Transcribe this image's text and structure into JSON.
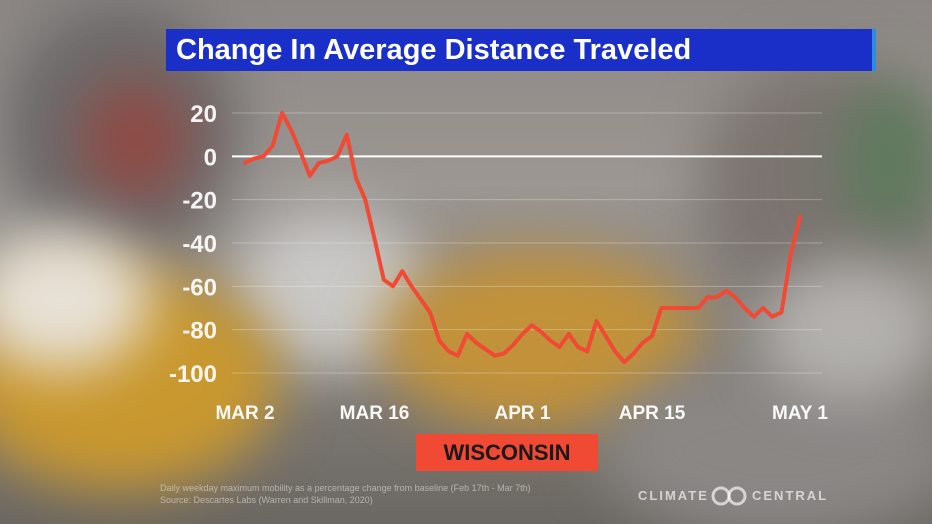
{
  "title": "Change In Average Distance Traveled",
  "region_label": "WISCONSIN",
  "footnote": {
    "line1": "Daily weekday maximum mobility as a percentage change from baseline (Feb 17th - Mar 7th)",
    "line2": "Source: Descartes Labs (Warren and Skillman, 2020)"
  },
  "brand": {
    "left": "CLIMATE",
    "right": "CENTRAL",
    "icon": "climate-central-logo-icon"
  },
  "colors": {
    "title_bg": "#1a2fc8",
    "line": "#f04a35",
    "region_bg": "#f04a35",
    "zero_line": "#ffffff"
  },
  "chart_data": {
    "type": "line",
    "title": "Change In Average Distance Traveled",
    "xlabel": "",
    "ylabel": "",
    "ylim": [
      -100,
      20
    ],
    "xlim": [
      "2020-03-02",
      "2020-05-01"
    ],
    "yticks": [
      20,
      0,
      -20,
      -40,
      -60,
      -80,
      -100
    ],
    "xtick_labels": [
      "MAR 2",
      "MAR 16",
      "APR 1",
      "APR 15",
      "MAY 1"
    ],
    "xtick_dates": [
      "2020-03-02",
      "2020-03-16",
      "2020-04-01",
      "2020-04-15",
      "2020-05-01"
    ],
    "grid": true,
    "legend": "none",
    "series": [
      {
        "x": [
          "2020-03-02",
          "2020-03-03",
          "2020-03-04",
          "2020-03-05",
          "2020-03-06",
          "2020-03-07",
          "2020-03-08",
          "2020-03-09",
          "2020-03-10",
          "2020-03-11",
          "2020-03-12",
          "2020-03-13",
          "2020-03-14",
          "2020-03-15",
          "2020-03-16",
          "2020-03-17",
          "2020-03-18",
          "2020-03-19",
          "2020-03-20",
          "2020-03-21",
          "2020-03-22",
          "2020-03-23",
          "2020-03-24",
          "2020-03-25",
          "2020-03-26",
          "2020-03-27",
          "2020-03-28",
          "2020-03-29",
          "2020-03-30",
          "2020-03-31",
          "2020-04-01",
          "2020-04-02",
          "2020-04-03",
          "2020-04-04",
          "2020-04-05",
          "2020-04-06",
          "2020-04-07",
          "2020-04-08",
          "2020-04-09",
          "2020-04-10",
          "2020-04-11",
          "2020-04-12",
          "2020-04-13",
          "2020-04-14",
          "2020-04-15",
          "2020-04-16",
          "2020-04-17",
          "2020-04-18",
          "2020-04-19",
          "2020-04-20",
          "2020-04-21",
          "2020-04-22",
          "2020-04-23",
          "2020-04-24",
          "2020-04-25",
          "2020-04-26",
          "2020-04-27",
          "2020-04-28",
          "2020-04-29",
          "2020-04-30",
          "2020-05-01"
        ],
        "values": [
          -3,
          -1,
          0,
          5,
          20,
          12,
          2,
          -9,
          -3,
          -2,
          0,
          10,
          -10,
          -20,
          -38,
          -57,
          -60,
          -53,
          -60,
          -66,
          -72,
          -85,
          -90,
          -92,
          -82,
          -86,
          -89,
          -92,
          -91,
          -87,
          -82,
          -78,
          -81,
          -85,
          -88,
          -82,
          -88,
          -90,
          -76,
          -83,
          -90,
          -95,
          -91,
          -86,
          -83,
          -70,
          -70,
          -70,
          -70,
          -70,
          -65,
          -65,
          -62,
          -65,
          -70,
          -74,
          -70,
          -74,
          -72,
          -45,
          -28
        ]
      }
    ]
  }
}
